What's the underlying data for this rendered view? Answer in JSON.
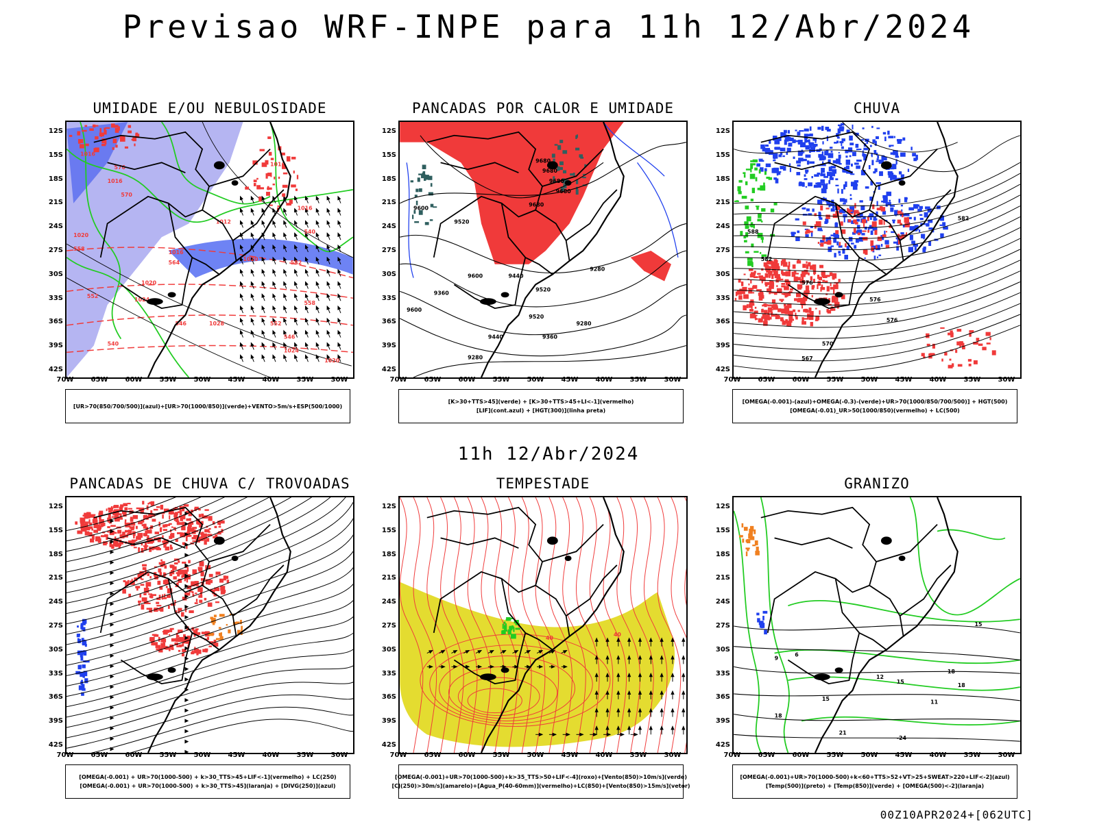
{
  "page": {
    "title": "Previsao WRF-INPE  para 11h 12/Abr/2024",
    "mid_label": "11h 12/Abr/2024",
    "footer": "00Z10APR2024+[062UTC]"
  },
  "axes": {
    "lat_labels": [
      "12S",
      "15S",
      "18S",
      "21S",
      "24S",
      "27S",
      "30S",
      "33S",
      "36S",
      "39S",
      "42S"
    ],
    "lon_labels": [
      "70W",
      "65W",
      "60W",
      "55W",
      "50W",
      "45W",
      "40W",
      "35W",
      "30W"
    ]
  },
  "colors": {
    "red": "#f03a3a",
    "green": "#22cc22",
    "blue": "#2040ee",
    "lavender": "#a8a8f0",
    "dark_teal": "#2f5f5f",
    "yellow": "#e4dc30",
    "orange": "#f08020",
    "black": "#000000"
  },
  "panels": [
    {
      "id": "umidade",
      "title": "UMIDADE E/OU NEBULOSIDADE",
      "legend": [
        "[UR>70(850/700/500)](azul)+[UR>70(1000/850)](verde)+VENTO>5m/s+ESP(500/1000)"
      ],
      "contour_labels": [
        "1016",
        "1016",
        "1016",
        "1016",
        "1012",
        "1020",
        "1020",
        "1016",
        "1020",
        "1024",
        "1028",
        "1024",
        "1020",
        "576",
        "570",
        "564",
        "558",
        "552",
        "546",
        "540",
        "582",
        "558",
        "552",
        "546",
        "540"
      ]
    },
    {
      "id": "pancadas-calor",
      "title": "PANCADAS POR CALOR E UMIDADE",
      "legend": [
        "[K>30+TTS>45](verde)  +  [K>30+TTS>45+LI<-1](vermelho)",
        "[LIF](cont.azul)  +  [HGT(300)](linha preta)"
      ],
      "contour_labels": [
        "9680",
        "9680",
        "9680",
        "9680",
        "9600",
        "9680",
        "9520",
        "9600",
        "9520",
        "9440",
        "9360",
        "9600",
        "9520",
        "9440",
        "9360",
        "9280",
        "9280",
        "9280"
      ]
    },
    {
      "id": "chuva",
      "title": "CHUVA",
      "legend": [
        "[OMEGA(-0.001)-(azul)+OMEGA(-0.3)-(verde)+UR>70(1000/850/700/500)]  +  HGT(500)",
        "[OMEGA(-0.01)_UR>50(1000/850)(vermelho)  +  LC(500)"
      ],
      "contour_labels": [
        "588",
        "582",
        "582",
        "576",
        "576",
        "576",
        "570",
        "567"
      ]
    },
    {
      "id": "pancadas-trovoadas",
      "title": "PANCADAS DE CHUVA C/ TROVOADAS",
      "legend": [
        "[OMEGA(-0.001)  +  UR>70(1000-500)  +  k>30_TTS>45+LIF<-1](vermelho)  +  LC(250)",
        "[OMEGA(-0.001)  +  UR>70(1000-500)  +  k>30_TTS>45](laranja)  +  [DIVG(250)](azul)"
      ],
      "contour_labels": []
    },
    {
      "id": "tempestade",
      "title": "TEMPESTADE",
      "legend": [
        "[OMEGA(-0.001)+UR>70(1000-500)+k>35_TTS>50+LIF<-4](roxo)+[Vento(850)>10m/s](verde)",
        "[CJ(250)>30m/s](amarelo)+[Agua_P(40-60mm)](vermelho)+LC(850)+[Vento(850)>15m/s](vetor)"
      ],
      "contour_labels": [
        "40",
        "40"
      ]
    },
    {
      "id": "granizo",
      "title": "GRANIZO",
      "legend": [
        "[OMEGA(-0.001)+UR>70(1000-500)+k<60+TTS>52+VT>25+SWEAT>220+LIF<-2](azul)",
        "[Temp(500)](preto)  +  [Temp(850)](verde)  +  [OMEGA(500)<-2](laranja)"
      ],
      "contour_labels": [
        "15",
        "6",
        "9",
        "12",
        "15",
        "18",
        "18",
        "15",
        "11",
        "18",
        "21",
        "-24"
      ]
    }
  ]
}
